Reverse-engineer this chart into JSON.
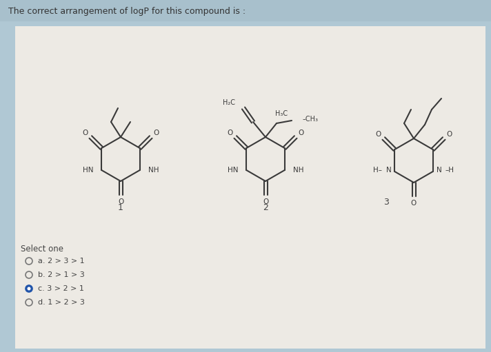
{
  "title": "The correct arrangement of logP for this compound is :",
  "title_fontsize": 9,
  "title_color": "#333333",
  "bg_outer": "#b0c8d4",
  "bg_inner": "#edeae4",
  "title_bar_color": "#a8c0cc",
  "select_one_label": "Select one",
  "options": [
    {
      "label": "a. 2 > 3 > 1",
      "selected": false
    },
    {
      "label": "b. 2 > 1 > 3",
      "selected": false
    },
    {
      "label": "c. 3 > 2 > 1",
      "selected": true
    },
    {
      "label": "d. 1 > 2 > 3",
      "selected": false
    }
  ],
  "radio_color_unsel": "#777777",
  "radio_color_sel": "#2255aa",
  "option_fontsize": 8,
  "select_fontsize": 8.5,
  "structure_color": "#3a3a3a",
  "label_fontsize": 8.5
}
